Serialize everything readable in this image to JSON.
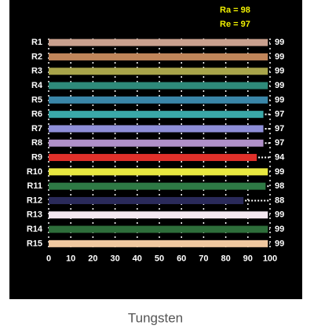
{
  "chart_data": {
    "type": "bar",
    "orientation": "horizontal",
    "annotations": [
      "Ra = 98",
      "Re = 97"
    ],
    "caption": "Tungsten",
    "categories": [
      "R1",
      "R2",
      "R3",
      "R4",
      "R5",
      "R6",
      "R7",
      "R8",
      "R9",
      "R10",
      "R11",
      "R12",
      "R13",
      "R14",
      "R15"
    ],
    "values": [
      99,
      99,
      99,
      99,
      99,
      97,
      97,
      97,
      94,
      99,
      98,
      88,
      99,
      99,
      99
    ],
    "colors": [
      "#c9a08e",
      "#c0855a",
      "#a8a44a",
      "#2e8a7a",
      "#3a86a8",
      "#3aa8a8",
      "#8e8ed8",
      "#b090c8",
      "#e0302a",
      "#e8e840",
      "#2e7a45",
      "#2a2a5a",
      "#f4e8f0",
      "#2e6e3a",
      "#f0c8a0"
    ],
    "xlim": [
      0,
      100
    ],
    "xticks": [
      0,
      10,
      20,
      30,
      40,
      50,
      60,
      70,
      80,
      90,
      100
    ],
    "grid": true
  }
}
